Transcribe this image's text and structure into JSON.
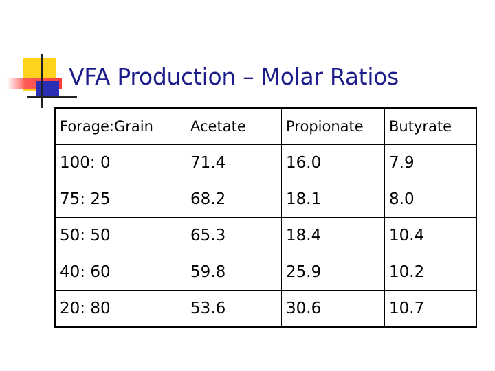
{
  "slide": {
    "title": "VFA Production – Molar Ratios"
  },
  "table": {
    "headers": [
      "Forage:Grain",
      "Acetate",
      "Propionate",
      "Butyrate"
    ],
    "rows": [
      [
        "100: 0",
        "71.4",
        "16.0",
        "7.9"
      ],
      [
        "75: 25",
        "68.2",
        "18.1",
        "8.0"
      ],
      [
        "50: 50",
        "65.3",
        "18.4",
        "10.4"
      ],
      [
        "40: 60",
        "59.8",
        "25.9",
        "10.2"
      ],
      [
        "20: 80",
        "53.6",
        "30.6",
        "10.7"
      ]
    ]
  },
  "colors": {
    "title": "#1c1c8a",
    "accent_yellow": "#ffd21e",
    "accent_red": "#ff3b3b",
    "accent_blue": "#2a2eb5"
  }
}
